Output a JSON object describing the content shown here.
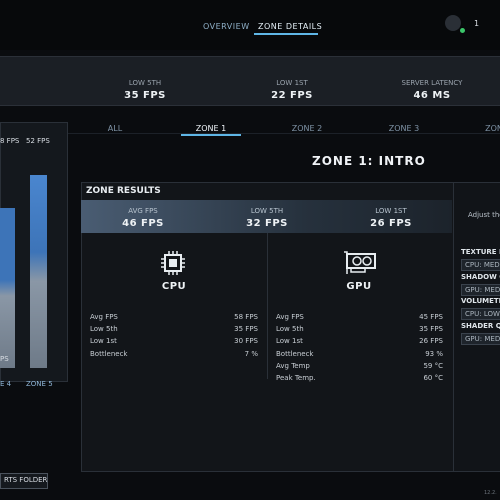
{
  "nav": {
    "overview": "OVERVIEW",
    "zone_details": "ZONE DETAILS",
    "badge": "1"
  },
  "stats": [
    {
      "label": "LOW 5TH",
      "value": "35 FPS"
    },
    {
      "label": "LOW 1ST",
      "value": "22 FPS"
    },
    {
      "label": "SERVER LATENCY",
      "value": "46 MS"
    }
  ],
  "side": {
    "values": [
      "8 FPS",
      "52 FPS"
    ],
    "zones": [
      "E 4",
      "ZONE 5"
    ],
    "footer": "PS"
  },
  "folder": "RTS FOLDER",
  "tabs": [
    "ALL",
    "ZONE 1",
    "ZONE 2",
    "ZONE 3",
    "ZON"
  ],
  "heading": "ZONE 1: INTRO",
  "results": {
    "title": "ZONE RESULTS",
    "summary": [
      {
        "label": "AVG FPS",
        "value": "46 FPS"
      },
      {
        "label": "LOW 5TH",
        "value": "32 FPS"
      },
      {
        "label": "LOW 1ST",
        "value": "26 FPS"
      }
    ],
    "cpu": {
      "title": "CPU",
      "rows": [
        [
          "Avg FPS",
          "58 FPS"
        ],
        [
          "Low 5th",
          "35 FPS"
        ],
        [
          "Low 1st",
          "30 FPS"
        ],
        [
          "Bottleneck",
          "7 %"
        ]
      ]
    },
    "gpu": {
      "title": "GPU",
      "rows": [
        [
          "Avg FPS",
          "45 FPS"
        ],
        [
          "Low 5th",
          "35 FPS"
        ],
        [
          "Low 1st",
          "26 FPS"
        ],
        [
          "Bottleneck",
          "93 %"
        ],
        [
          "Avg Temp",
          "59 °C"
        ],
        [
          "Peak Temp.",
          "60 °C"
        ]
      ]
    }
  },
  "settings": {
    "subtitle": "Adjust the",
    "items": [
      {
        "name": "TEXTURE F",
        "value": "CPU: MED"
      },
      {
        "name": "SHADOW Q",
        "value": "GPU: MED"
      },
      {
        "name": "VOLUMETR",
        "value": "CPU: LOW"
      },
      {
        "name": "SHADER QU",
        "value": "GPU: MED"
      }
    ]
  },
  "version": "12.2."
}
